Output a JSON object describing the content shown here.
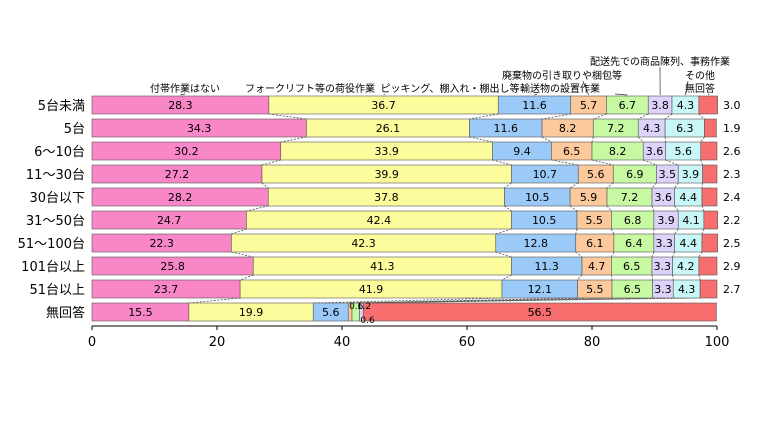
{
  "chart_data": {
    "type": "bar",
    "orientation": "horizontal",
    "stacked": true,
    "categories": [
      "5台未満",
      "5台",
      "6～10台",
      "11～30台",
      "30台以下",
      "31～50台",
      "51～100台",
      "101台以上",
      "51台以上",
      "無回答"
    ],
    "series": [
      {
        "name": "付帯作業はない",
        "color": "#f986c6",
        "values": [
          28.3,
          34.3,
          30.2,
          27.2,
          28.2,
          24.7,
          22.3,
          25.8,
          23.7,
          15.5
        ]
      },
      {
        "name": "フォークリフト等の荷役作業",
        "color": "#fdfc9c",
        "values": [
          36.7,
          26.1,
          33.9,
          39.9,
          37.8,
          42.4,
          42.3,
          41.3,
          41.9,
          19.9
        ]
      },
      {
        "name": "ピッキング、棚入れ・棚出し等",
        "color": "#9ccaf8",
        "values": [
          11.6,
          11.6,
          9.4,
          10.7,
          10.5,
          10.5,
          12.8,
          11.3,
          12.1,
          5.6
        ]
      },
      {
        "name": "廃棄物の引き取りや梱包等",
        "color": "#fbc99b",
        "values": [
          5.7,
          8.2,
          6.5,
          5.6,
          5.9,
          5.5,
          6.1,
          4.7,
          5.5,
          0.6
        ]
      },
      {
        "name": "輸送物の設置作業",
        "color": "#c6f9a2",
        "values": [
          6.7,
          7.2,
          8.2,
          6.9,
          7.2,
          6.8,
          6.4,
          6.5,
          6.5,
          1.2
        ]
      },
      {
        "name": "配送先での商品陳列、事務作業",
        "color": "#dcd2fa",
        "values": [
          3.8,
          4.3,
          3.6,
          3.5,
          3.6,
          3.9,
          3.3,
          3.3,
          3.3,
          0.6
        ]
      },
      {
        "name": "その他",
        "color": "#c9f7f7",
        "values": [
          4.3,
          6.3,
          5.6,
          3.9,
          4.4,
          4.1,
          4.4,
          4.2,
          4.3,
          0
        ]
      },
      {
        "name": "無回答",
        "color": "#f66e6e",
        "values": [
          3.0,
          1.9,
          2.6,
          2.3,
          2.4,
          2.2,
          2.5,
          2.9,
          2.7,
          56.5
        ]
      }
    ],
    "xlim": [
      0,
      100
    ],
    "xticks": [
      0,
      20,
      40,
      60,
      80,
      100
    ],
    "value_labels": [
      [
        "28.3",
        "36.7",
        "11.6",
        "5.7",
        "6.7",
        "3.8",
        "4.3",
        "3.0"
      ],
      [
        "34.3",
        "26.1",
        "11.6",
        "8.2",
        "7.2",
        "4.3",
        "6.3",
        "1.9"
      ],
      [
        "30.2",
        "33.9",
        "9.4",
        "6.5",
        "8.2",
        "3.6",
        "5.6",
        "2.6"
      ],
      [
        "27.2",
        "39.9",
        "10.7",
        "5.6",
        "6.9",
        "3.5",
        "3.9",
        "2.3"
      ],
      [
        "28.2",
        "37.8",
        "10.5",
        "5.9",
        "7.2",
        "3.6",
        "4.4",
        "2.4"
      ],
      [
        "24.7",
        "42.4",
        "10.5",
        "5.5",
        "6.8",
        "3.9",
        "4.1",
        "2.2"
      ],
      [
        "22.3",
        "42.3",
        "12.8",
        "6.1",
        "6.4",
        "3.3",
        "4.4",
        "2.5"
      ],
      [
        "25.8",
        "41.3",
        "11.3",
        "4.7",
        "6.5",
        "3.3",
        "4.2",
        "2.9"
      ],
      [
        "23.7",
        "41.9",
        "12.1",
        "5.5",
        "6.5",
        "3.3",
        "4.3",
        "2.7"
      ],
      [
        "15.5",
        "19.9",
        "5.6",
        "0.6",
        "1.2",
        "0.6",
        "",
        "56.5"
      ]
    ],
    "grid": false,
    "legend": "top"
  }
}
